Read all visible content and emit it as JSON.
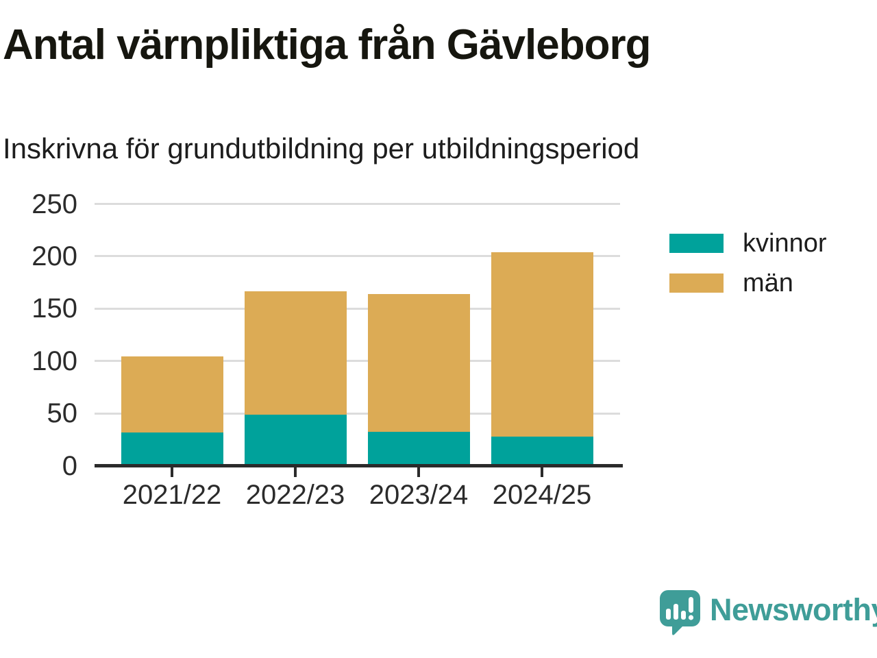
{
  "header": {
    "title": "Antal värnpliktiga från Gävleborg",
    "subtitle": "Inskrivna för grundutbildning per utbildningsperiod"
  },
  "chart_data": {
    "type": "bar",
    "stacked": true,
    "title": "Antal värnpliktiga från Gävleborg",
    "subtitle": "Inskrivna för grundutbildning per utbildningsperiod",
    "categories": [
      "2021/22",
      "2022/23",
      "2023/24",
      "2024/25"
    ],
    "series": [
      {
        "name": "kvinnor",
        "color": "#00a29b",
        "values": [
          30,
          47,
          31,
          26
        ]
      },
      {
        "name": "män",
        "color": "#dcab55",
        "values": [
          73,
          118,
          131,
          176
        ]
      }
    ],
    "stack_totals": [
      103,
      165,
      162,
      202
    ],
    "xlabel": "",
    "ylabel": "",
    "ylim": [
      0,
      250
    ],
    "yticks": [
      0,
      50,
      100,
      150,
      200,
      250
    ],
    "grid": "horizontal",
    "legend_position": "right"
  },
  "legend": {
    "items": [
      {
        "label": "kvinnor",
        "color": "#00a29b"
      },
      {
        "label": "män",
        "color": "#dcab55"
      }
    ]
  },
  "colors": {
    "kvinnor": "#00a29b",
    "man": "#dcab55",
    "axis": "#2b2b2b",
    "gridline": "#dcdcdc",
    "brand": "#3f9d98"
  },
  "footer": {
    "brand": "Newsworthy"
  }
}
